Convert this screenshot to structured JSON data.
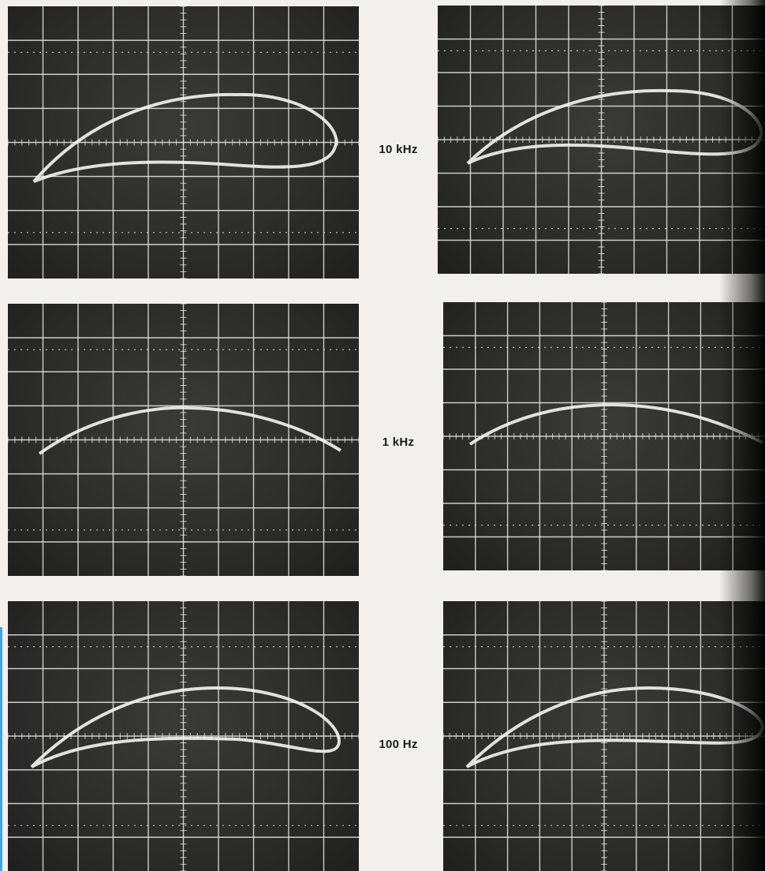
{
  "labels": {
    "row1": "10 kHz",
    "row2": "1 kHz",
    "row3": "100 Hz"
  },
  "colors": {
    "page_background": "#f1f0ec",
    "screen": "#2e2e2c",
    "graticule": "#e9e9e6",
    "trace": "#f4f4f2",
    "accent_edge": "#3da7e6"
  },
  "panels": [
    {
      "name": "oscillogram-10khz-left",
      "trace": "hysteresis-loop"
    },
    {
      "name": "oscillogram-10khz-right",
      "trace": "hysteresis-loop"
    },
    {
      "name": "oscillogram-1khz-left",
      "trace": "single-arc"
    },
    {
      "name": "oscillogram-1khz-right",
      "trace": "single-arc"
    },
    {
      "name": "oscillogram-100hz-left",
      "trace": "hysteresis-loop"
    },
    {
      "name": "oscillogram-100hz-right",
      "trace": "hysteresis-loop"
    }
  ]
}
